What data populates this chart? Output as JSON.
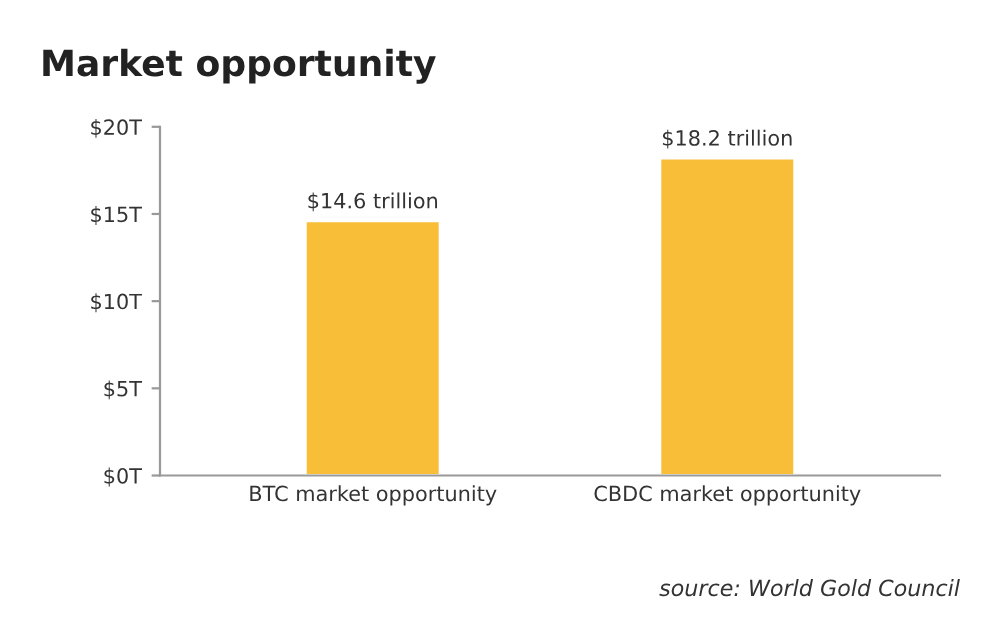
{
  "chart_data": {
    "type": "bar",
    "title": "Market opportunity",
    "categories": [
      "BTC market opportunity",
      "CBDC market opportunity"
    ],
    "values": [
      14.6,
      18.2
    ],
    "value_labels": [
      "$14.6 trillion",
      "$18.2 trillion"
    ],
    "color": "#f8bb2e",
    "ylim": [
      0,
      20
    ],
    "yticks": [
      {
        "value": 0,
        "label": "$0T"
      },
      {
        "value": 5,
        "label": "$5T"
      },
      {
        "value": 10,
        "label": "$10T"
      },
      {
        "value": 15,
        "label": "$15T"
      },
      {
        "value": 20,
        "label": "$20T"
      }
    ],
    "grid": false,
    "legend": false,
    "annotations": [
      "source: World Gold Council"
    ]
  }
}
